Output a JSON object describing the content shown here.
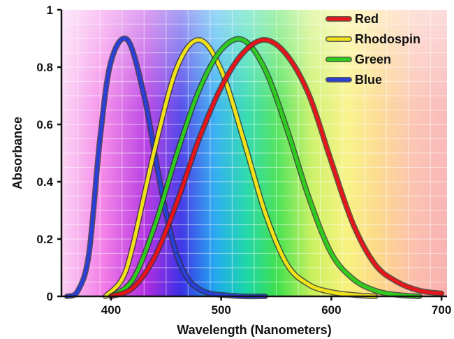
{
  "chart_data": {
    "type": "line",
    "title": "",
    "xlabel": "Wavelength (Nanometers)",
    "ylabel": "Absorbance",
    "xlim": [
      355,
      705
    ],
    "ylim": [
      0,
      1
    ],
    "x_ticks": [
      400,
      500,
      600,
      700
    ],
    "x_tick_labels": [
      "400",
      "500",
      "600",
      "700"
    ],
    "y_ticks": [
      0,
      0.2,
      0.4,
      0.6,
      0.8,
      1
    ],
    "y_tick_labels": [
      "0",
      "0.2",
      "0.4",
      "0.6",
      "0.8",
      "1"
    ],
    "grid": true,
    "background": "visible-spectrum gradient",
    "legend": {
      "position": "top-right"
    },
    "series": [
      {
        "name": "Red",
        "color": "#e8141c",
        "x": [
          400,
          420,
          440,
          460,
          480,
          500,
          520,
          540,
          560,
          580,
          600,
          620,
          640,
          660,
          680,
          700
        ],
        "values": [
          0,
          0.03,
          0.14,
          0.33,
          0.55,
          0.73,
          0.85,
          0.895,
          0.84,
          0.7,
          0.47,
          0.25,
          0.11,
          0.05,
          0.02,
          0.01
        ]
      },
      {
        "name": "Rhodospin",
        "color": "#f2e21a",
        "x": [
          395,
          410,
          420,
          440,
          460,
          480,
          500,
          520,
          540,
          560,
          580,
          600,
          620,
          640
        ],
        "values": [
          0,
          0.06,
          0.18,
          0.52,
          0.8,
          0.895,
          0.79,
          0.55,
          0.29,
          0.11,
          0.04,
          0.015,
          0.005,
          0
        ]
      },
      {
        "name": "Green",
        "color": "#2ecc1e",
        "x": [
          400,
          420,
          440,
          460,
          480,
          500,
          520,
          540,
          560,
          580,
          600,
          620,
          640,
          660,
          680
        ],
        "values": [
          0,
          0.06,
          0.25,
          0.5,
          0.72,
          0.86,
          0.895,
          0.79,
          0.58,
          0.34,
          0.15,
          0.06,
          0.02,
          0.005,
          0
        ]
      },
      {
        "name": "Blue",
        "color": "#2a3fd6",
        "x": [
          360,
          370,
          380,
          390,
          400,
          415,
          430,
          440,
          450,
          460,
          470,
          480,
          490,
          500,
          520,
          540
        ],
        "values": [
          0,
          0.02,
          0.15,
          0.55,
          0.82,
          0.895,
          0.7,
          0.49,
          0.29,
          0.14,
          0.06,
          0.025,
          0.01,
          0.005,
          0,
          0
        ]
      }
    ]
  },
  "colors": {
    "axis": "#111111",
    "grid": "#ffffff"
  }
}
